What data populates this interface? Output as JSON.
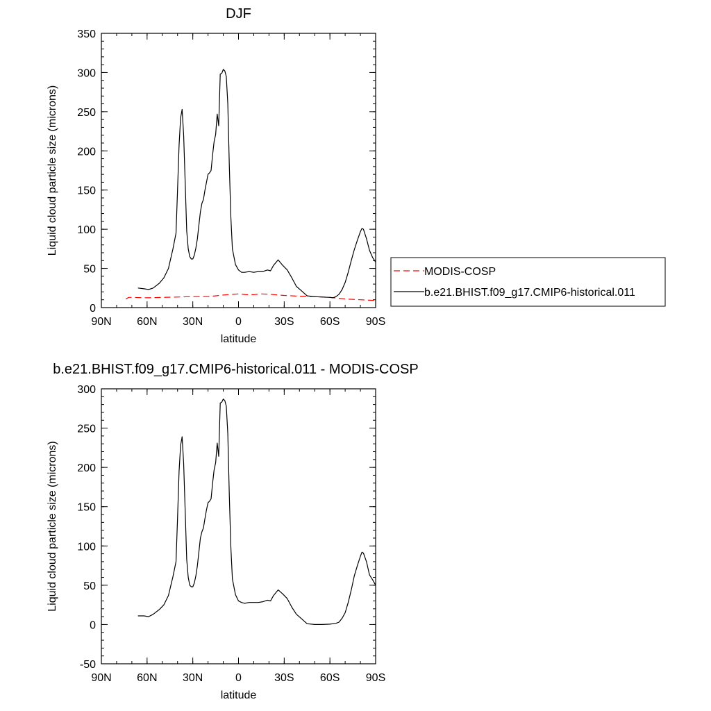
{
  "chart_data": [
    {
      "type": "line",
      "title": "DJF",
      "xlabel": "latitude",
      "ylabel": "Liquid cloud particle size (microns)",
      "xlim": [
        -90,
        90
      ],
      "ylim": [
        0,
        350
      ],
      "x_ticks": [
        -90,
        -60,
        -30,
        0,
        30,
        60,
        90
      ],
      "x_tick_labels": [
        "90N",
        "60N",
        "30N",
        "0",
        "30S",
        "60S",
        "90S"
      ],
      "y_ticks": [
        0,
        50,
        100,
        150,
        200,
        250,
        300,
        350
      ],
      "y_tick_labels": [
        "0",
        "50",
        "100",
        "150",
        "200",
        "250",
        "300",
        "350"
      ],
      "legend_position": "right",
      "series": [
        {
          "name": "MODIS-COSP",
          "color": "#ff0000",
          "dash": "dashed",
          "x": [
            -74,
            -72,
            -70,
            -60,
            -50,
            -40,
            -30,
            -20,
            -10,
            0,
            5,
            10,
            15,
            20,
            30,
            40,
            50,
            60,
            70,
            80,
            90
          ],
          "y": [
            11,
            13,
            13,
            12.5,
            13,
            13.5,
            14,
            14,
            16,
            17.5,
            16.5,
            16.5,
            17.5,
            17,
            15.5,
            14.5,
            14,
            13,
            11,
            10,
            9
          ]
        },
        {
          "name": "b.e21.BHIST.f09_g17.CMIP6-historical.011",
          "color": "#000000",
          "dash": "solid",
          "x": [
            -66,
            -62,
            -59,
            -56,
            -52,
            -49,
            -46,
            -43,
            -41,
            -40,
            -39,
            -38,
            -37,
            -36,
            -35,
            -34,
            -33,
            -32,
            -31,
            -30,
            -29,
            -28,
            -27,
            -26,
            -25,
            -24,
            -23,
            -22,
            -21,
            -20,
            -19,
            -18,
            -17,
            -16,
            -15,
            -14,
            -13,
            -12,
            -11,
            -10,
            -9,
            -8,
            -7,
            -6,
            -5,
            -4,
            -2,
            0,
            2,
            4,
            7,
            10,
            13,
            16,
            19,
            21,
            23,
            26,
            29,
            32,
            35,
            38,
            41,
            45,
            50,
            55,
            60,
            62,
            64,
            66,
            68,
            70,
            72,
            74,
            76,
            78,
            80,
            81,
            82,
            84,
            86,
            88,
            90
          ],
          "y": [
            25,
            24,
            23,
            25,
            31,
            38,
            50,
            75,
            95,
            150,
            207,
            242,
            253,
            220,
            160,
            98,
            75,
            65,
            62,
            62,
            67,
            76,
            88,
            105,
            122,
            133,
            138,
            150,
            160,
            170,
            172,
            175,
            195,
            212,
            221,
            247,
            232,
            298,
            299,
            304,
            302,
            295,
            260,
            180,
            115,
            75,
            55,
            48,
            45,
            45,
            46,
            45,
            46,
            46,
            48,
            47,
            54,
            61,
            54,
            48,
            38,
            27,
            22,
            15,
            14,
            13.5,
            13,
            12.5,
            14,
            17,
            23,
            32,
            45,
            60,
            74,
            86,
            97,
            101,
            100,
            88,
            73,
            64,
            58
          ]
        }
      ]
    },
    {
      "type": "line",
      "title": "b.e21.BHIST.f09_g17.CMIP6-historical.011 - MODIS-COSP",
      "xlabel": "latitude",
      "ylabel": "Liquid cloud particle size (microns)",
      "xlim": [
        -90,
        90
      ],
      "ylim": [
        -50,
        300
      ],
      "x_ticks": [
        -90,
        -60,
        -30,
        0,
        30,
        60,
        90
      ],
      "x_tick_labels": [
        "90N",
        "60N",
        "30N",
        "0",
        "30S",
        "60S",
        "90S"
      ],
      "y_ticks": [
        -50,
        0,
        50,
        100,
        150,
        200,
        250,
        300
      ],
      "y_tick_labels": [
        "-50",
        "0",
        "50",
        "100",
        "150",
        "200",
        "250",
        "300"
      ],
      "series": [
        {
          "color": "#000000",
          "dash": "solid",
          "x": [
            -66,
            -62,
            -59,
            -56,
            -52,
            -49,
            -46,
            -43,
            -41,
            -40,
            -39,
            -38,
            -37,
            -36,
            -35,
            -34,
            -33,
            -32,
            -31,
            -30,
            -29,
            -28,
            -27,
            -26,
            -25,
            -24,
            -23,
            -22,
            -21,
            -20,
            -19,
            -18,
            -17,
            -16,
            -15,
            -14,
            -13,
            -12,
            -11,
            -10,
            -9,
            -8,
            -7,
            -6,
            -5,
            -4,
            -2,
            0,
            2,
            4,
            7,
            10,
            13,
            16,
            19,
            21,
            23,
            26,
            29,
            32,
            35,
            38,
            41,
            45,
            50,
            55,
            60,
            62,
            64,
            66,
            68,
            70,
            72,
            74,
            76,
            78,
            80,
            81,
            82,
            84,
            86,
            88,
            90
          ],
          "y": [
            11,
            11,
            10,
            13,
            19,
            25,
            37,
            61,
            80,
            135,
            195,
            228,
            239,
            205,
            145,
            83,
            60,
            50,
            48,
            48,
            53,
            62,
            75,
            92,
            110,
            118,
            123,
            135,
            146,
            155,
            157,
            160,
            180,
            197,
            206,
            231,
            214,
            282,
            283,
            287,
            285,
            278,
            243,
            163,
            98,
            58,
            38,
            30,
            28,
            27,
            28,
            28,
            28,
            29,
            31,
            30,
            37,
            44,
            39,
            33,
            22,
            13,
            8,
            1,
            0,
            0,
            0.5,
            1,
            1.5,
            3,
            8,
            15,
            28,
            44,
            62,
            75,
            87,
            92,
            91,
            80,
            63,
            57,
            50
          ]
        }
      ]
    }
  ]
}
